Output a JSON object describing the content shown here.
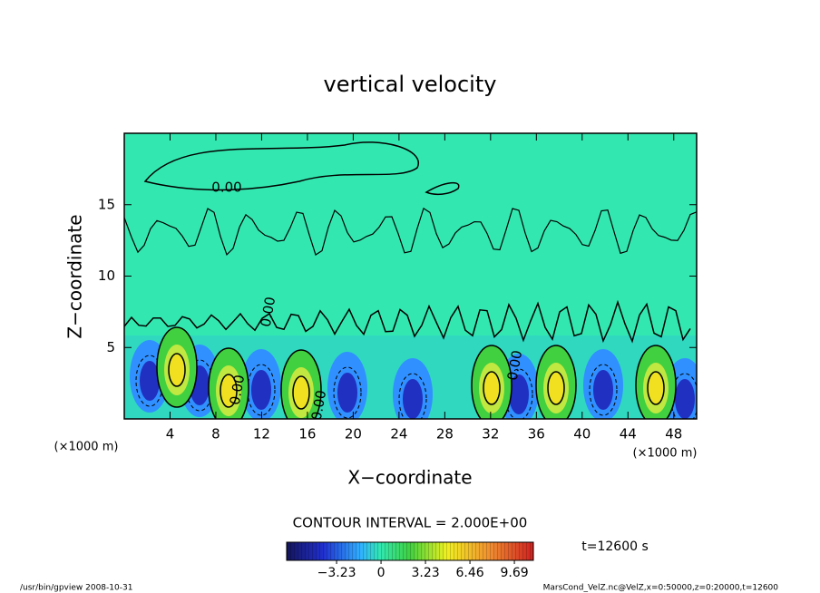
{
  "chart_data": {
    "type": "contour",
    "title": "vertical velocity",
    "xlabel": "X−coordinate",
    "ylabel": "Z−coordinate",
    "x_unit_label": "(×1000 m)",
    "x_unit_label_right": "(×1000 m)",
    "xlim": [
      0,
      50
    ],
    "ylim": [
      0,
      20
    ],
    "xticks": [
      4,
      8,
      12,
      16,
      20,
      24,
      28,
      32,
      36,
      40,
      44,
      48
    ],
    "yticks": [
      5,
      10,
      15
    ],
    "contour_labels": [
      "0.00",
      "0.00",
      "0.00",
      "0.00",
      "0.00"
    ],
    "contour_interval": "CONTOUR INTERVAL = 2.000E+00",
    "colorbar": {
      "clim": [
        -6.86,
        11.07
      ],
      "ticks": [
        {
          "value": -3.23,
          "label": "−3.23"
        },
        0,
        3.23,
        6.46,
        9.69
      ]
    },
    "time_label": "t=12600 s",
    "footer_left": "/usr/bin/gpview   2008-10-31",
    "footer_right": "MarsCond_VelZ.nc@VelZ,x=0:50000,z=0:20000,t=12600"
  }
}
